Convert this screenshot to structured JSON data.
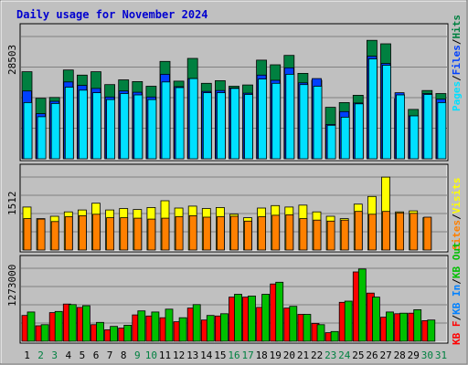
{
  "title": "Daily usage for November 2024",
  "colors": {
    "hits": "#008040",
    "files": "#0040ff",
    "pages": "#00e0ff",
    "visits": "#ffff00",
    "sites": "#ff8000",
    "kb_f": "#ff0000",
    "kb_in": "#0080ff",
    "kb_out": "#00c000",
    "weekday_label": "#000000",
    "weekend_label": "#008040"
  },
  "legend": {
    "top": [
      "Pages",
      "Files",
      "Hits"
    ],
    "middle": [
      "Visits",
      "Sites"
    ],
    "bottom": [
      "KB F",
      "KB In",
      "KB Out"
    ],
    "separator": "/"
  },
  "chart_data": [
    {
      "type": "bar",
      "panel": "hits-files-pages",
      "ytick": "28503",
      "ylim": [
        0,
        28503
      ],
      "x": [
        1,
        2,
        3,
        4,
        5,
        6,
        7,
        8,
        9,
        10,
        11,
        12,
        13,
        14,
        15,
        16,
        17,
        18,
        19,
        20,
        21,
        22,
        23,
        24,
        25,
        26,
        27,
        28,
        29,
        30,
        31
      ],
      "series": [
        {
          "name": "Hits",
          "values": [
            20300,
            14100,
            14300,
            20700,
            19500,
            20300,
            17300,
            18400,
            18000,
            16900,
            22700,
            18100,
            23400,
            17600,
            18200,
            16900,
            17200,
            23000,
            21900,
            24100,
            19900,
            18300,
            12000,
            13100,
            14800,
            27600,
            26800,
            14000,
            11500,
            15900,
            15200
          ]
        },
        {
          "name": "Files",
          "values": [
            15800,
            10500,
            13400,
            17900,
            17100,
            16400,
            14400,
            15800,
            15500,
            14400,
            19700,
            16800,
            18700,
            15700,
            15900,
            16500,
            15300,
            19500,
            18300,
            21200,
            17700,
            18700,
            8000,
            11000,
            13000,
            23900,
            22200,
            15400,
            10000,
            15200,
            13900
          ]
        },
        {
          "name": "Pages",
          "values": [
            13100,
            9800,
            12900,
            16700,
            16000,
            15400,
            13800,
            15200,
            14900,
            13800,
            17900,
            16600,
            18700,
            15400,
            15400,
            16400,
            15000,
            18600,
            17600,
            19700,
            17300,
            16900,
            7800,
            9700,
            12800,
            23300,
            21800,
            14900,
            10000,
            15000,
            13100
          ]
        }
      ]
    },
    {
      "type": "bar",
      "panel": "visits-sites",
      "ytick": "1512",
      "ylim": [
        0,
        1512
      ],
      "x": [
        1,
        2,
        3,
        4,
        5,
        6,
        7,
        8,
        9,
        10,
        11,
        12,
        13,
        14,
        15,
        16,
        17,
        18,
        19,
        20,
        21,
        22,
        23,
        24,
        25,
        26,
        27,
        28,
        29,
        30,
        31
      ],
      "series": [
        {
          "name": "Visits",
          "values": [
            890,
            650,
            700,
            790,
            830,
            970,
            830,
            860,
            840,
            880,
            1020,
            870,
            910,
            860,
            880,
            740,
            670,
            870,
            920,
            890,
            930,
            790,
            700,
            650,
            950,
            1110,
            1510,
            790,
            810,
            670,
            0
          ]
        },
        {
          "name": "Sites",
          "values": [
            650,
            640,
            590,
            690,
            710,
            740,
            670,
            670,
            660,
            640,
            660,
            690,
            710,
            680,
            690,
            700,
            600,
            690,
            720,
            730,
            650,
            620,
            600,
            620,
            800,
            740,
            800,
            770,
            760,
            680,
            0
          ]
        }
      ]
    },
    {
      "type": "bar",
      "panel": "kbytes",
      "ytick": "1273000",
      "ylim": [
        0,
        1273000
      ],
      "x": [
        1,
        2,
        3,
        4,
        5,
        6,
        7,
        8,
        9,
        10,
        11,
        12,
        13,
        14,
        15,
        16,
        17,
        18,
        19,
        20,
        21,
        22,
        23,
        24,
        25,
        26,
        27,
        28,
        29,
        30,
        31
      ],
      "series": [
        {
          "name": "KB F",
          "values": [
            450000,
            270000,
            500000,
            650000,
            590000,
            290000,
            200000,
            230000,
            460000,
            440000,
            410000,
            340000,
            580000,
            370000,
            440000,
            770000,
            770000,
            590000,
            1000000,
            580000,
            470000,
            310000,
            150000,
            680000,
            1210000,
            840000,
            420000,
            480000,
            490000,
            360000,
            0
          ]
        },
        {
          "name": "KB In",
          "values": [
            0,
            0,
            0,
            0,
            0,
            0,
            0,
            0,
            0,
            0,
            0,
            0,
            0,
            0,
            0,
            0,
            0,
            0,
            0,
            0,
            0,
            0,
            0,
            0,
            0,
            0,
            0,
            0,
            0,
            0,
            0
          ]
        },
        {
          "name": "KB Out",
          "values": [
            510000,
            290000,
            520000,
            640000,
            620000,
            330000,
            260000,
            280000,
            530000,
            510000,
            560000,
            410000,
            640000,
            450000,
            480000,
            820000,
            790000,
            820000,
            1030000,
            610000,
            470000,
            290000,
            170000,
            700000,
            1260000,
            770000,
            510000,
            490000,
            550000,
            370000,
            0
          ]
        }
      ]
    }
  ],
  "weekend_days": [
    2,
    3,
    9,
    10,
    16,
    17,
    23,
    24,
    30,
    31
  ]
}
